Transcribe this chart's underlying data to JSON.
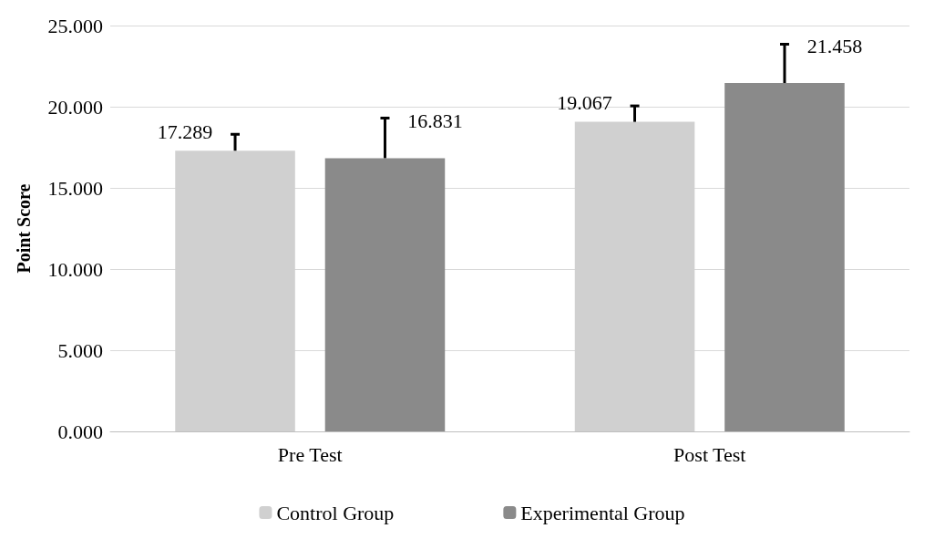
{
  "chart_data": {
    "type": "bar",
    "ylabel": "Point Score",
    "categories": [
      "Pre Test",
      "Post Test"
    ],
    "series": [
      {
        "name": "Control Group",
        "color": "#d0d0d0",
        "values": [
          17.289,
          19.067
        ],
        "errors": [
          [
            17.289,
            18.3
          ],
          [
            19.067,
            20.05
          ]
        ]
      },
      {
        "name": "Experimental Group",
        "color": "#8a8a8a",
        "values": [
          16.831,
          21.458
        ],
        "errors": [
          [
            16.831,
            19.3
          ],
          [
            21.458,
            23.85
          ]
        ]
      }
    ],
    "ylim": [
      0,
      25
    ],
    "yticks": [
      {
        "value": 0,
        "label": "0.000"
      },
      {
        "value": 5,
        "label": "5.000"
      },
      {
        "value": 10,
        "label": "10.000"
      },
      {
        "value": 15,
        "label": "15.000"
      },
      {
        "value": 20,
        "label": "20.000"
      },
      {
        "value": 25,
        "label": "25.000"
      }
    ],
    "grid": "y",
    "legend": "bottom",
    "data_labels": true
  }
}
